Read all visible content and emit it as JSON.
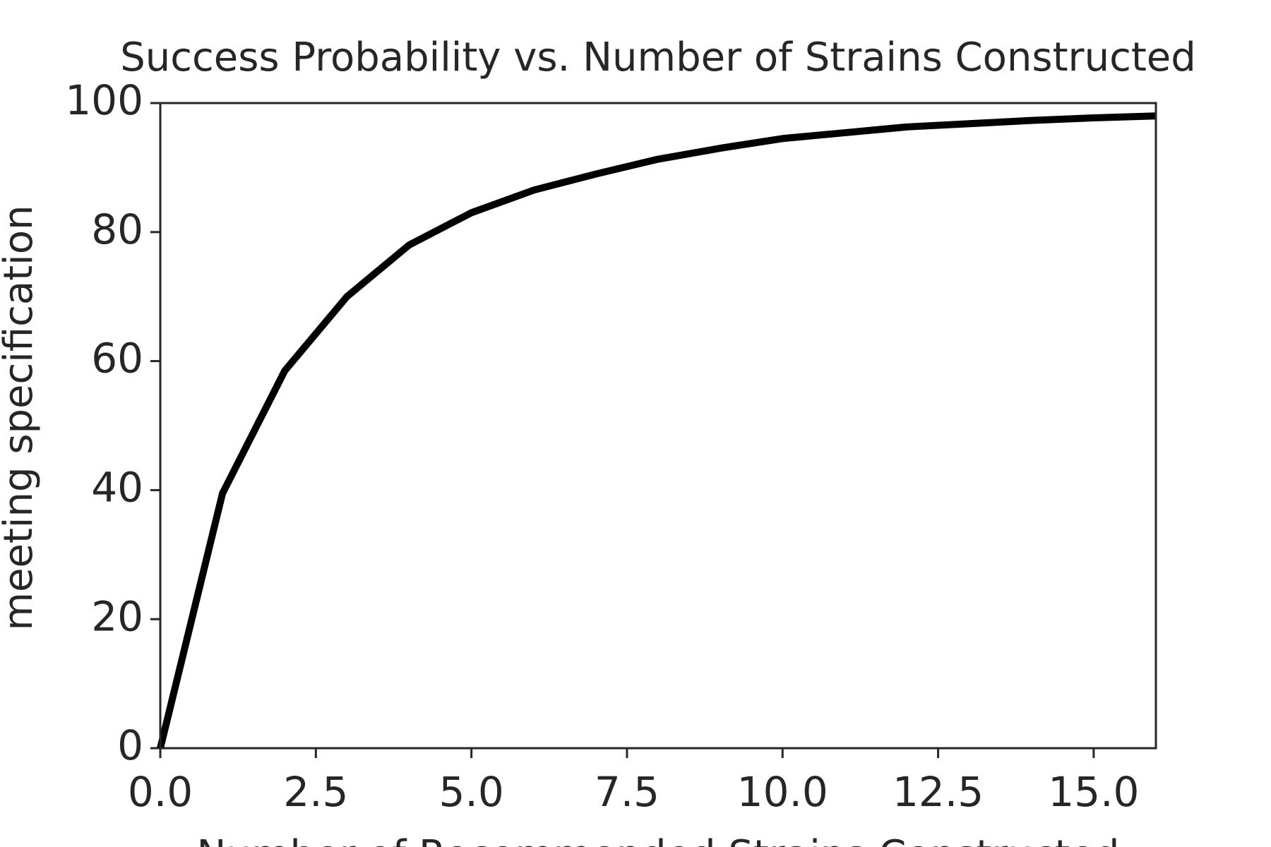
{
  "chart_data": {
    "type": "line",
    "title": "Success Probability vs. Number of Strains Constructed",
    "x_label": "Number of Recommended Strains Constructed",
    "y_label": "meeting specification",
    "x": [
      0,
      1,
      2,
      3,
      4,
      5,
      6,
      7,
      8,
      9,
      10,
      11,
      12,
      13,
      14,
      15,
      16
    ],
    "series": [
      {
        "color": "#000000",
        "values": [
          0,
          39.5,
          58.5,
          70,
          78,
          83,
          86.5,
          89,
          91.3,
          93,
          94.5,
          95.4,
          96.3,
          96.8,
          97.3,
          97.7,
          98
        ]
      }
    ],
    "xlim": [
      0,
      16
    ],
    "ylim": [
      0,
      100
    ],
    "xticks": [
      {
        "value": 0,
        "label": "0.0"
      },
      {
        "value": 2.5,
        "label": "2.5"
      },
      {
        "value": 5,
        "label": "5.0"
      },
      {
        "value": 7.5,
        "label": "7.5"
      },
      {
        "value": 10,
        "label": "10.0"
      },
      {
        "value": 12.5,
        "label": "12.5"
      },
      {
        "value": 15,
        "label": "15.0"
      }
    ],
    "yticks": [
      0,
      20,
      40,
      60,
      80,
      100
    ],
    "grid": false
  }
}
